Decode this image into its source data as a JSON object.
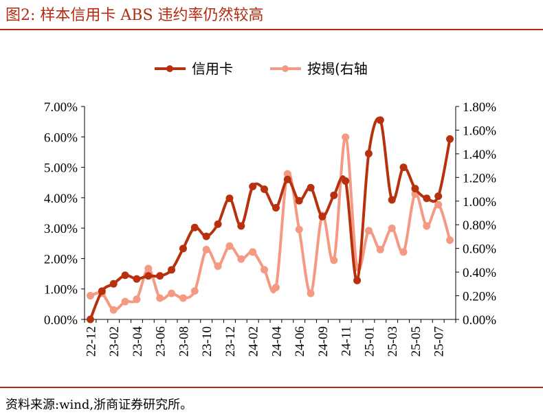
{
  "figure": {
    "title": "图2:   样本信用卡 ABS 违约率仍然较高",
    "source": "资料来源:wind,浙商证券研究所。"
  },
  "colors": {
    "title": "#b22a10",
    "rule": "#b22a10",
    "series_credit_card": "#b8310f",
    "series_mortgage": "#f49a83"
  },
  "chart_data": {
    "type": "line",
    "title": "",
    "legend_position": "top",
    "categories": [
      "22-12",
      "23-01",
      "23-02",
      "23-03",
      "23-04",
      "23-05",
      "23-06",
      "23-07",
      "23-08",
      "23-09",
      "23-10",
      "23-11",
      "23-12",
      "24-01",
      "24-02",
      "24-03",
      "24-04",
      "24-05",
      "24-06",
      "24-07",
      "24-09",
      "24-10",
      "24-11",
      "24-12",
      "25-01",
      "25-02",
      "25-03",
      "25-04",
      "25-05",
      "25-06",
      "25-07",
      "25-08"
    ],
    "tick_labels": [
      "22-12",
      "23-02",
      "23-04",
      "23-06",
      "23-08",
      "23-10",
      "23-12",
      "24-02",
      "24-04",
      "24-06",
      "24-09",
      "24-11",
      "25-01",
      "25-03",
      "25-05",
      "25-07"
    ],
    "y_left": {
      "range": [
        0,
        0.07
      ],
      "ticks": [
        "0.00%",
        "1.00%",
        "2.00%",
        "3.00%",
        "4.00%",
        "5.00%",
        "6.00%",
        "7.00%"
      ]
    },
    "y_right": {
      "range": [
        0,
        0.018
      ],
      "ticks": [
        "0.00%",
        "0.20%",
        "0.40%",
        "0.60%",
        "0.80%",
        "1.00%",
        "1.20%",
        "1.40%",
        "1.60%",
        "1.80%"
      ]
    },
    "series": [
      {
        "name": "信用卡",
        "axis": "left",
        "values": [
          0.0,
          0.0093,
          0.0117,
          0.0145,
          0.0133,
          0.0143,
          0.0143,
          0.0163,
          0.0233,
          0.0302,
          0.0273,
          0.0313,
          0.0398,
          0.0307,
          0.0437,
          0.0428,
          0.0367,
          0.046,
          0.039,
          0.0433,
          0.0338,
          0.0408,
          0.0455,
          0.0128,
          0.0545,
          0.0655,
          0.0393,
          0.05,
          0.043,
          0.0398,
          0.0405,
          0.0593
        ]
      },
      {
        "name": "按揭(右轴",
        "axis": "right",
        "values": [
          0.002,
          0.0022,
          0.0008,
          0.0015,
          0.0017,
          0.0043,
          0.0018,
          0.0022,
          0.0018,
          0.0024,
          0.0059,
          0.0045,
          0.0062,
          0.0051,
          0.0057,
          0.0042,
          0.0027,
          0.0123,
          0.0076,
          0.0022,
          0.0088,
          0.005,
          0.0154,
          0.0044,
          0.0075,
          0.0059,
          0.0077,
          0.0057,
          0.0106,
          0.0079,
          0.0097,
          0.0067
        ]
      }
    ]
  }
}
